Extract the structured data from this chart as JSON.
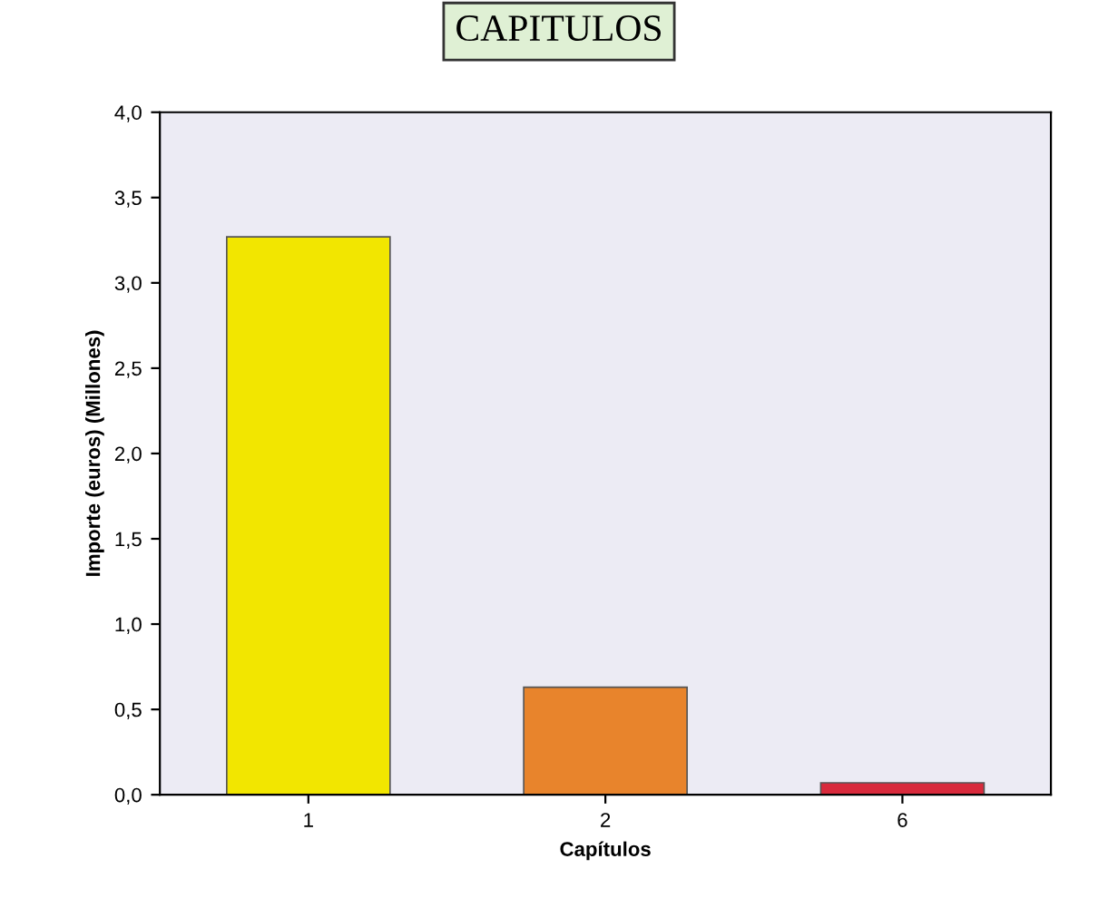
{
  "chart_data": {
    "type": "bar",
    "title": "CAPITULOS",
    "xlabel": "Capítulos",
    "ylabel": "Importe (euros) (Millones)",
    "categories": [
      "1",
      "2",
      "6"
    ],
    "values": [
      3.27,
      0.63,
      0.07
    ],
    "colors": [
      "#f2e600",
      "#e8842c",
      "#d82a3c"
    ],
    "ylim": [
      0,
      4
    ],
    "yticks": [
      {
        "value": 0,
        "label": "0,0"
      },
      {
        "value": 0.5,
        "label": "0,5"
      },
      {
        "value": 1,
        "label": "1,0"
      },
      {
        "value": 1.5,
        "label": "1,5"
      },
      {
        "value": 2,
        "label": "2,0"
      },
      {
        "value": 2.5,
        "label": "2,5"
      },
      {
        "value": 3,
        "label": "3,0"
      },
      {
        "value": 3.5,
        "label": "3,5"
      },
      {
        "value": 4,
        "label": "4,0"
      }
    ],
    "grid": false
  }
}
